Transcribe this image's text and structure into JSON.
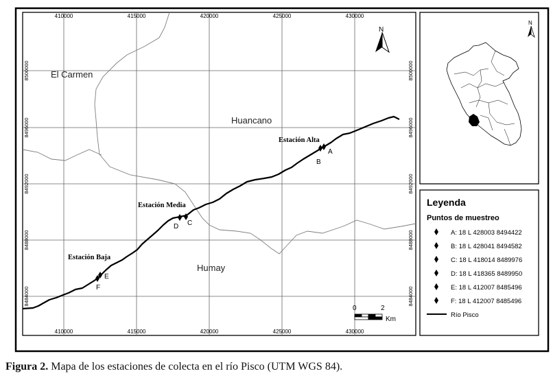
{
  "map": {
    "north_label": "N",
    "scale_zero": "0",
    "scale_two": "2",
    "scale_unit": "Km",
    "x_ticks": [
      "410000",
      "415000",
      "420000",
      "425000",
      "430000"
    ],
    "y_ticks": [
      "8500000",
      "8496000",
      "8492000",
      "8488000",
      "8484000"
    ],
    "places": {
      "el_carmen": "El Carmen",
      "huancano": "Huancano",
      "humay": "Humay"
    },
    "stations": {
      "alta": "Estación Alta",
      "media": "Estación Media",
      "baja": "Estación Baja"
    },
    "points": [
      "A",
      "B",
      "C",
      "D",
      "E",
      "F"
    ]
  },
  "inset": {
    "north_label": "N"
  },
  "legend": {
    "title": "Leyenda",
    "subtitle": "Puntos de muestreo",
    "items": [
      "A: 18 L 428003 8494422",
      "B: 18 L 428041 8494582",
      "C: 18 L 418014 8489976",
      "D: 18 L 418365 8489950",
      "E: 18 L 412007 8485496",
      "F: 18 L 412007 8485496"
    ],
    "river": "Río Pisco"
  },
  "caption": {
    "label": "Figura 2.",
    "text": " Mapa de los estaciones de colecta en el río Pisco (UTM WGS 84)."
  },
  "colors": {
    "river": "#000000",
    "boundary": "#808080",
    "grid": "#555555",
    "frame": "#000000"
  }
}
